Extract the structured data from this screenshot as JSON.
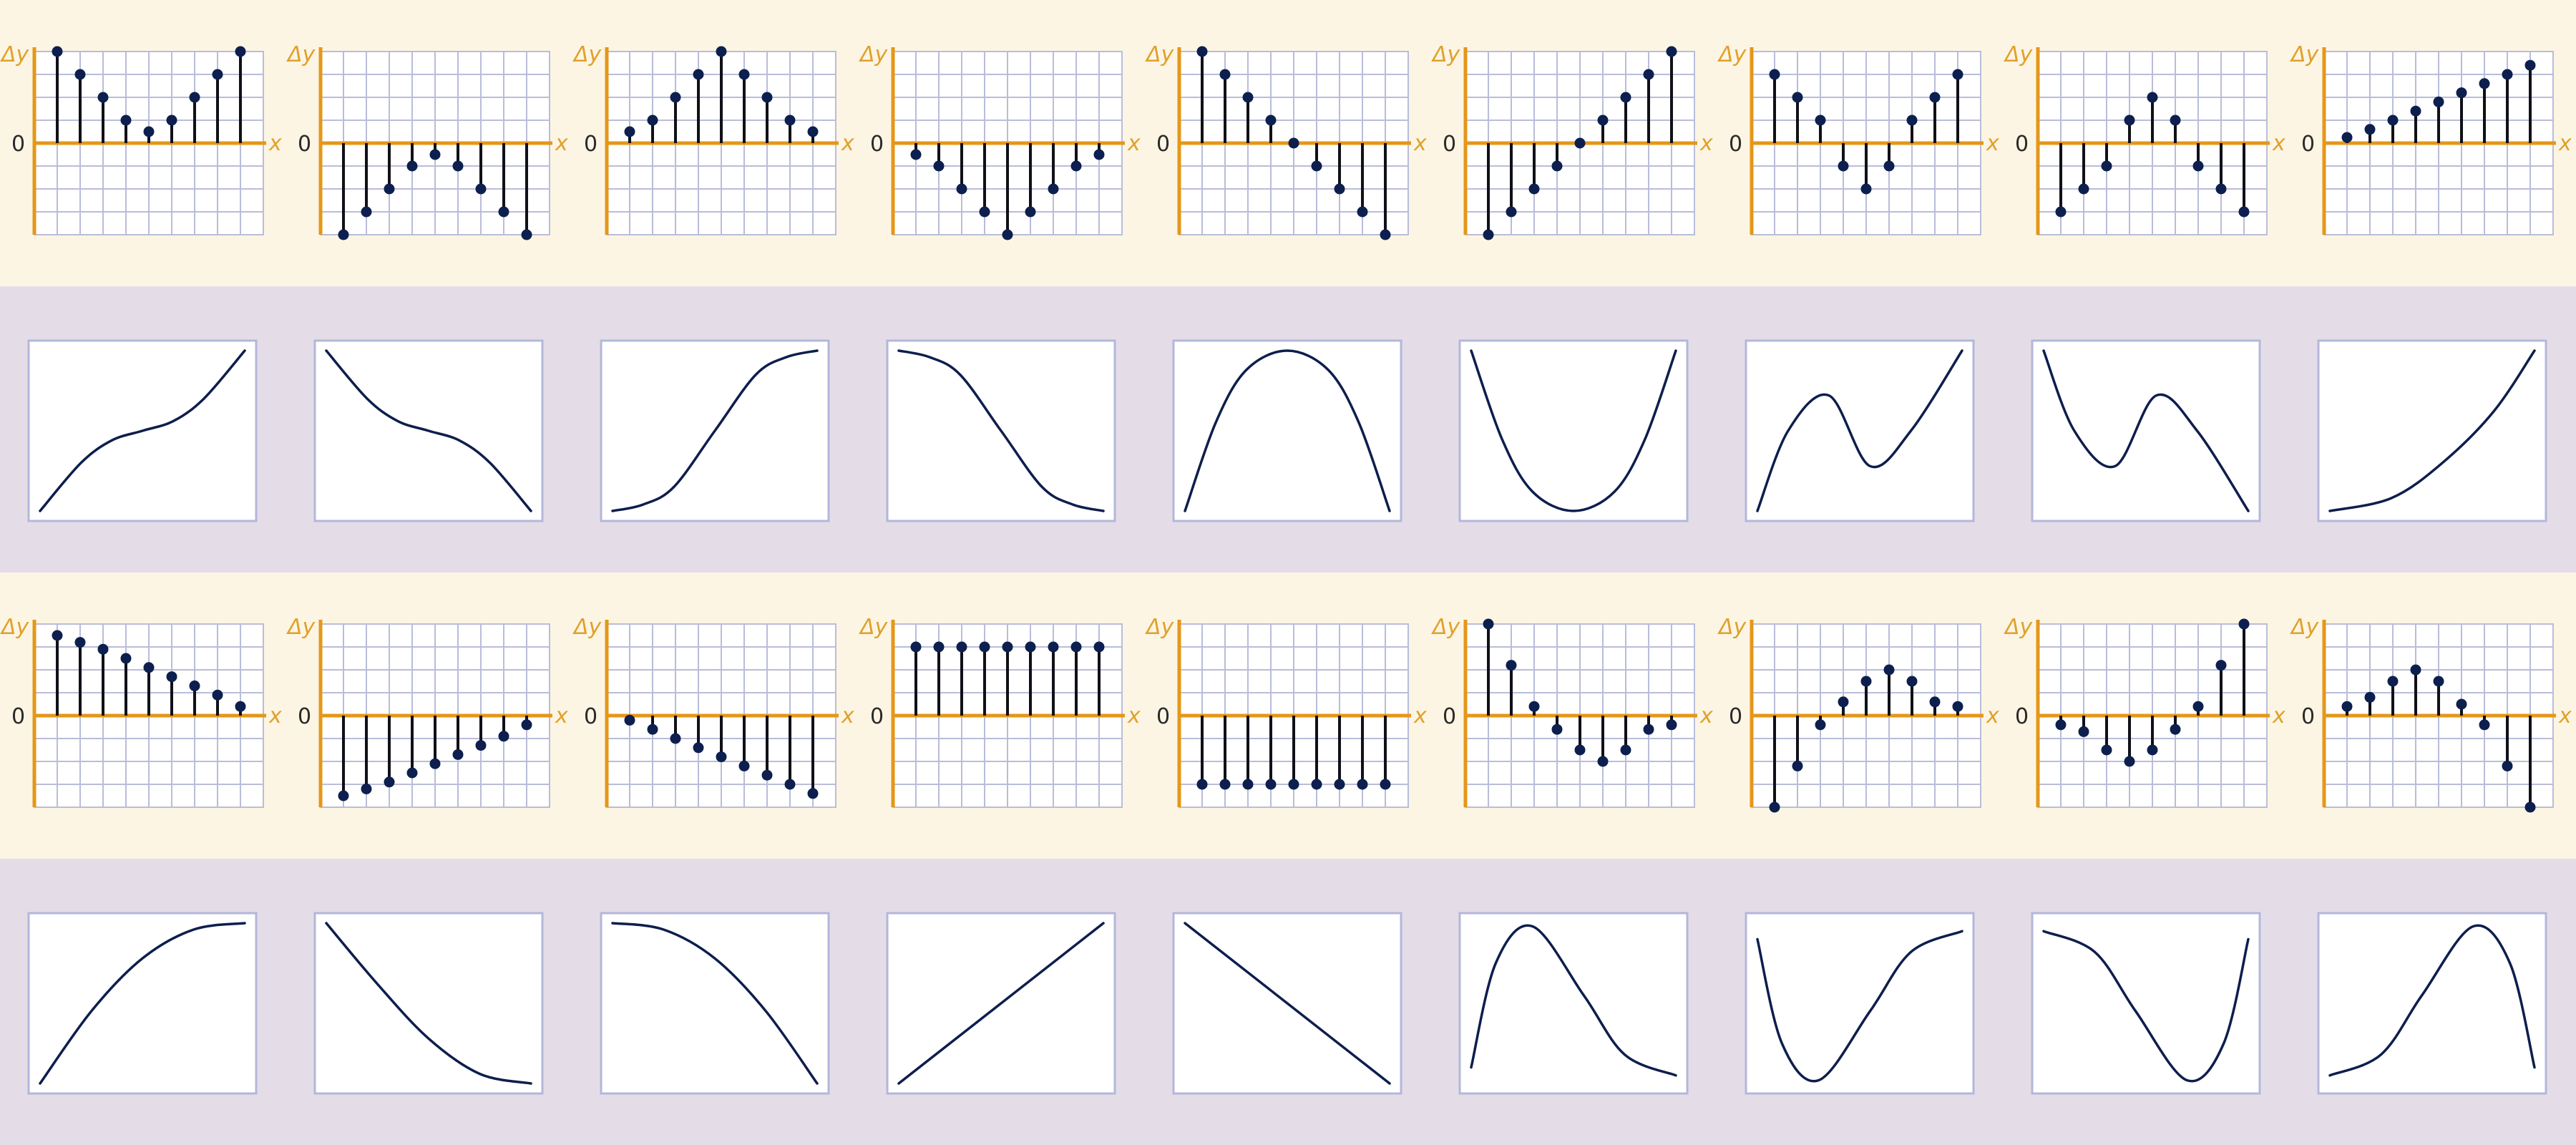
{
  "labels": {
    "delta_y": "Δy",
    "x": "x",
    "zero": "0"
  },
  "colors": {
    "band_light": "#fdf5e4",
    "band_dark": "#e4dde8",
    "grid": "#b9bdd9",
    "frame": "#b3b7da",
    "axis": "#e49719",
    "axis_label": "#e0a12b",
    "stem": "#101018",
    "dot": "#0c1f4e",
    "curve": "#0d1e4d",
    "panel_bg": "#ffffff",
    "zero_text": "#2a2a2a"
  },
  "stem_rows": [
    [
      [
        4,
        3,
        2,
        1,
        0.5,
        1,
        2,
        3,
        4
      ],
      [
        -4,
        -3,
        -2,
        -1,
        -0.5,
        -1,
        -2,
        -3,
        -4
      ],
      [
        0.5,
        1,
        2,
        3,
        4,
        3,
        2,
        1,
        0.5
      ],
      [
        -0.5,
        -1,
        -2,
        -3,
        -4,
        -3,
        -2,
        -1,
        -0.5
      ],
      [
        4,
        3,
        2,
        1,
        0,
        -1,
        -2,
        -3,
        -4
      ],
      [
        -4,
        -3,
        -2,
        -1,
        0,
        1,
        2,
        3,
        4
      ],
      [
        3,
        2,
        1,
        -1,
        -2,
        -1,
        1,
        2,
        3
      ],
      [
        -3,
        -2,
        -1,
        1,
        2,
        1,
        -1,
        -2,
        -3
      ],
      [
        0.25,
        0.6,
        1,
        1.4,
        1.8,
        2.2,
        2.6,
        3,
        3.4
      ]
    ],
    [
      [
        3.5,
        3.2,
        2.9,
        2.5,
        2.1,
        1.7,
        1.3,
        0.9,
        0.4
      ],
      [
        -3.5,
        -3.2,
        -2.9,
        -2.5,
        -2.1,
        -1.7,
        -1.3,
        -0.9,
        -0.4
      ],
      [
        -0.2,
        -0.6,
        -1.0,
        -1.4,
        -1.8,
        -2.2,
        -2.6,
        -3.0,
        -3.4
      ],
      [
        3,
        3,
        3,
        3,
        3,
        3,
        3,
        3,
        3
      ],
      [
        -3,
        -3,
        -3,
        -3,
        -3,
        -3,
        -3,
        -3,
        -3
      ],
      [
        4,
        2.2,
        0.4,
        -0.6,
        -1.5,
        -2,
        -1.5,
        -0.6,
        -0.4
      ],
      [
        -4,
        -2.2,
        -0.4,
        0.6,
        1.5,
        2,
        1.5,
        0.6,
        0.4
      ],
      [
        -0.4,
        -0.7,
        -1.5,
        -2,
        -1.5,
        -0.6,
        0.4,
        2.2,
        4
      ],
      [
        0.4,
        0.8,
        1.5,
        2,
        1.5,
        0.5,
        -0.4,
        -2.2,
        -4
      ]
    ]
  ],
  "curve_rows": [
    [
      [
        [
          0,
          0
        ],
        [
          0.2,
          0.3
        ],
        [
          0.35,
          0.44
        ],
        [
          0.5,
          0.5
        ],
        [
          0.65,
          0.56
        ],
        [
          0.8,
          0.7
        ],
        [
          1,
          1
        ]
      ],
      [
        [
          0,
          1
        ],
        [
          0.2,
          0.7
        ],
        [
          0.35,
          0.56
        ],
        [
          0.5,
          0.5
        ],
        [
          0.65,
          0.44
        ],
        [
          0.8,
          0.3
        ],
        [
          1,
          0
        ]
      ],
      [
        [
          0,
          0
        ],
        [
          0.15,
          0.04
        ],
        [
          0.3,
          0.15
        ],
        [
          0.5,
          0.5
        ],
        [
          0.7,
          0.85
        ],
        [
          0.85,
          0.96
        ],
        [
          1,
          1
        ]
      ],
      [
        [
          0,
          1
        ],
        [
          0.15,
          0.96
        ],
        [
          0.3,
          0.85
        ],
        [
          0.5,
          0.5
        ],
        [
          0.7,
          0.15
        ],
        [
          0.85,
          0.04
        ],
        [
          1,
          0
        ]
      ],
      [
        [
          0,
          0
        ],
        [
          0.15,
          0.55
        ],
        [
          0.3,
          0.88
        ],
        [
          0.5,
          1
        ],
        [
          0.7,
          0.88
        ],
        [
          0.85,
          0.55
        ],
        [
          1,
          0
        ]
      ],
      [
        [
          0,
          1
        ],
        [
          0.15,
          0.45
        ],
        [
          0.3,
          0.12
        ],
        [
          0.5,
          0
        ],
        [
          0.7,
          0.12
        ],
        [
          0.85,
          0.45
        ],
        [
          1,
          1
        ]
      ],
      [
        [
          0,
          0
        ],
        [
          0.15,
          0.5
        ],
        [
          0.35,
          0.72
        ],
        [
          0.55,
          0.28
        ],
        [
          0.75,
          0.5
        ],
        [
          1,
          1
        ]
      ],
      [
        [
          0,
          1
        ],
        [
          0.15,
          0.5
        ],
        [
          0.35,
          0.28
        ],
        [
          0.55,
          0.72
        ],
        [
          0.75,
          0.5
        ],
        [
          1,
          0
        ]
      ],
      [
        [
          0,
          0
        ],
        [
          0.3,
          0.08
        ],
        [
          0.55,
          0.3
        ],
        [
          0.8,
          0.62
        ],
        [
          1,
          1
        ]
      ]
    ],
    [
      [
        [
          0,
          0
        ],
        [
          0.25,
          0.45
        ],
        [
          0.5,
          0.78
        ],
        [
          0.75,
          0.96
        ],
        [
          1,
          1
        ]
      ],
      [
        [
          0,
          1
        ],
        [
          0.25,
          0.62
        ],
        [
          0.5,
          0.28
        ],
        [
          0.75,
          0.06
        ],
        [
          1,
          0
        ]
      ],
      [
        [
          0,
          1
        ],
        [
          0.25,
          0.96
        ],
        [
          0.5,
          0.78
        ],
        [
          0.75,
          0.45
        ],
        [
          1,
          0
        ]
      ],
      [
        [
          0,
          0
        ],
        [
          1,
          1
        ]
      ],
      [
        [
          0,
          1
        ],
        [
          1,
          0
        ]
      ],
      [
        [
          0,
          0.1
        ],
        [
          0.12,
          0.75
        ],
        [
          0.3,
          0.98
        ],
        [
          0.55,
          0.55
        ],
        [
          0.75,
          0.18
        ],
        [
          1,
          0.05
        ]
      ],
      [
        [
          0,
          0.9
        ],
        [
          0.12,
          0.25
        ],
        [
          0.3,
          0.02
        ],
        [
          0.55,
          0.45
        ],
        [
          0.75,
          0.82
        ],
        [
          1,
          0.95
        ]
      ],
      [
        [
          0,
          0.95
        ],
        [
          0.25,
          0.82
        ],
        [
          0.45,
          0.45
        ],
        [
          0.7,
          0.02
        ],
        [
          0.88,
          0.25
        ],
        [
          1,
          0.9
        ]
      ],
      [
        [
          0,
          0.05
        ],
        [
          0.25,
          0.18
        ],
        [
          0.45,
          0.55
        ],
        [
          0.7,
          0.98
        ],
        [
          0.88,
          0.75
        ],
        [
          1,
          0.1
        ]
      ]
    ]
  ]
}
